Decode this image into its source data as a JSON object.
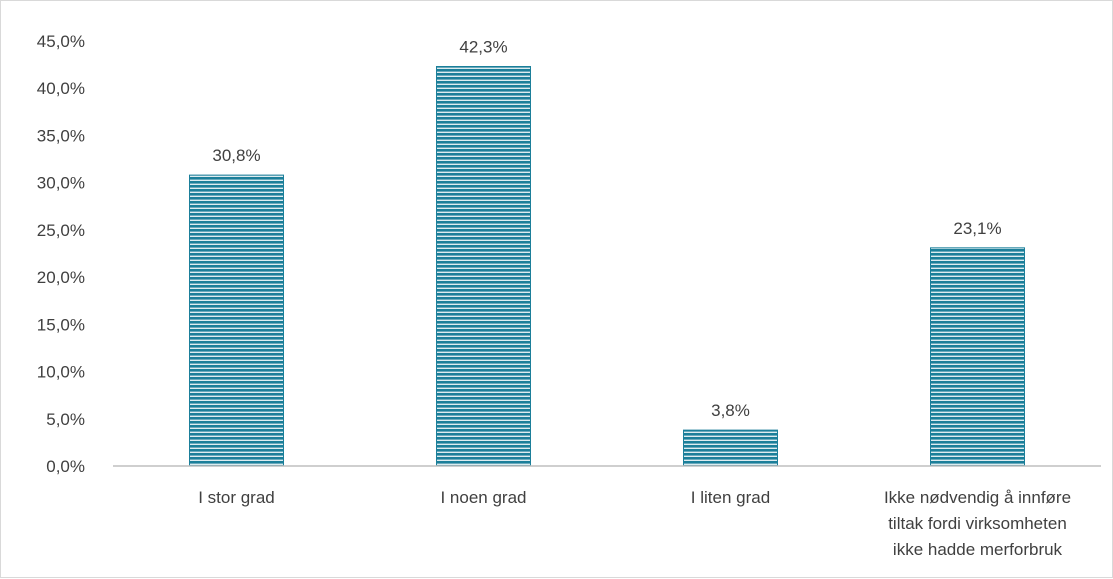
{
  "chart_data": {
    "type": "bar",
    "categories": [
      [
        "I stor grad"
      ],
      [
        "I noen grad"
      ],
      [
        "I liten grad"
      ],
      [
        "Ikke nødvendig å innføre",
        "tiltak fordi virksomheten",
        "ikke hadde merforbruk"
      ]
    ],
    "values": [
      30.8,
      42.3,
      3.8,
      23.1
    ],
    "value_labels": [
      "30,8%",
      "42,3%",
      "3,8%",
      "23,1%"
    ],
    "ylim": [
      0,
      45
    ],
    "yticks": [
      0,
      5,
      10,
      15,
      20,
      25,
      30,
      35,
      40,
      45
    ],
    "ytick_labels": [
      "0,0%",
      "5,0%",
      "10,0%",
      "15,0%",
      "20,0%",
      "25,0%",
      "30,0%",
      "35,0%",
      "40,0%",
      "45,0%"
    ],
    "title": "",
    "xlabel": "",
    "ylabel": "",
    "grid": false,
    "legend": "none",
    "colors": {
      "bar_fill": "#1b7f9a",
      "bar_stripe": "#ffffff",
      "axis": "#bfbfbf",
      "text": "#404040"
    }
  }
}
